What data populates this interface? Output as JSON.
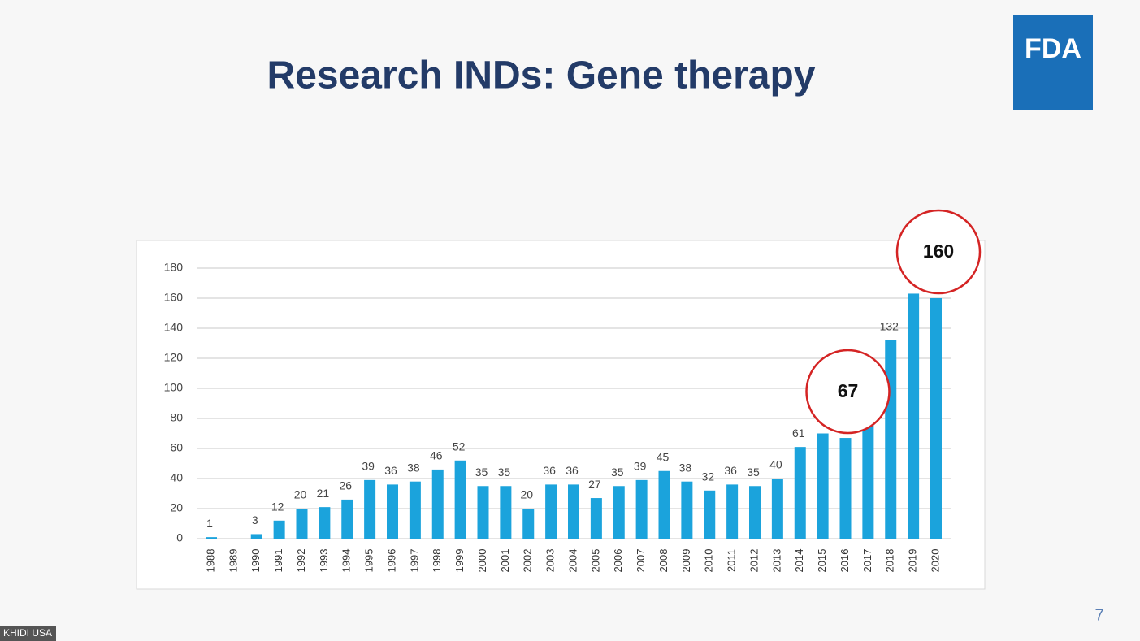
{
  "chart_data": {
    "type": "bar",
    "title": "Research INDs: Gene therapy",
    "logo": "FDA",
    "page_number": "7",
    "watermark": "KHIDI USA",
    "categories": [
      "1988",
      "1989",
      "1990",
      "1991",
      "1992",
      "1993",
      "1994",
      "1995",
      "1996",
      "1997",
      "1998",
      "1999",
      "2000",
      "2001",
      "2002",
      "2003",
      "2004",
      "2005",
      "2006",
      "2007",
      "2008",
      "2009",
      "2010",
      "2011",
      "2012",
      "2013",
      "2014",
      "2015",
      "2016",
      "2017",
      "2018",
      "2019",
      "2020"
    ],
    "values": [
      1,
      0,
      3,
      12,
      20,
      21,
      26,
      39,
      36,
      38,
      46,
      52,
      35,
      35,
      20,
      36,
      36,
      27,
      35,
      39,
      45,
      38,
      32,
      36,
      35,
      40,
      61,
      70,
      67,
      77,
      132,
      163,
      160
    ],
    "value_labels": [
      "1",
      null,
      "3",
      "12",
      "20",
      "21",
      "26",
      "39",
      "36",
      "38",
      "46",
      "52",
      "35",
      "35",
      "20",
      "36",
      "36",
      "27",
      "35",
      "39",
      "45",
      "38",
      "32",
      "36",
      "35",
      "40",
      "61",
      null,
      null,
      null,
      "132",
      null,
      null
    ],
    "circled": [
      {
        "category": "2016",
        "label": "67"
      },
      {
        "category": "2020",
        "label": "160"
      }
    ],
    "color": "#1ba3dc",
    "ylim": [
      0,
      180
    ],
    "yticks": [
      0,
      20,
      40,
      60,
      80,
      100,
      120,
      140,
      160,
      180
    ],
    "grid": true
  }
}
